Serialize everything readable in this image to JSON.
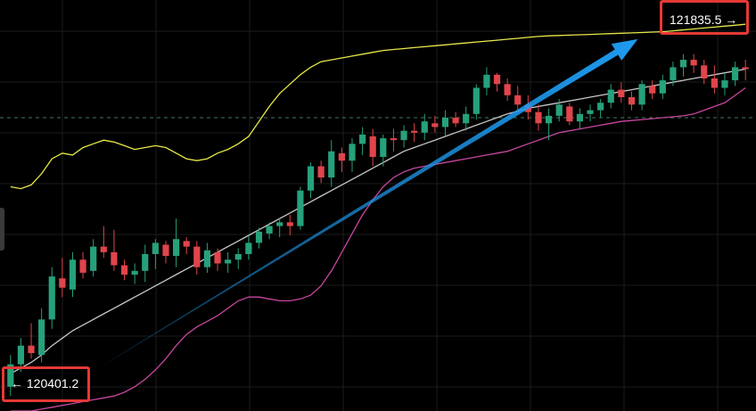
{
  "chart_data": {
    "type": "candlestick",
    "x_count": 72,
    "price_range": [
      119950,
      122150
    ],
    "grid": true,
    "colors": {
      "background": "#000000",
      "up": "#26a17b",
      "down": "#e0454b",
      "upper_band": "#e8e84a",
      "middle_band": "#c8c8c8",
      "lower_band": "#c7479e",
      "arrow": "#1e9bf0",
      "highlight_box": "#e53935",
      "reference_line": "#3f7a5a"
    },
    "reference_price": 121520,
    "candles": [
      [
        120080,
        120250,
        120030,
        120200
      ],
      [
        120200,
        120340,
        120160,
        120300
      ],
      [
        120300,
        120420,
        120230,
        120260
      ],
      [
        120250,
        120500,
        120210,
        120440
      ],
      [
        120440,
        120720,
        120390,
        120670
      ],
      [
        120660,
        120770,
        120560,
        120610
      ],
      [
        120600,
        120800,
        120560,
        120760
      ],
      [
        120760,
        120800,
        120660,
        120690
      ],
      [
        120700,
        120870,
        120670,
        120830
      ],
      [
        120830,
        120940,
        120770,
        120800
      ],
      [
        120800,
        120920,
        120700,
        120730
      ],
      [
        120730,
        120760,
        120650,
        120680
      ],
      [
        120680,
        120740,
        120630,
        120700
      ],
      [
        120700,
        120840,
        120640,
        120790
      ],
      [
        120790,
        120870,
        120710,
        120850
      ],
      [
        120840,
        120860,
        120740,
        120780
      ],
      [
        120780,
        120980,
        120720,
        120870
      ],
      [
        120860,
        120880,
        120790,
        120830
      ],
      [
        120830,
        120860,
        120680,
        120720
      ],
      [
        120720,
        120850,
        120690,
        120810
      ],
      [
        120800,
        120820,
        120700,
        120740
      ],
      [
        120740,
        120800,
        120690,
        120760
      ],
      [
        120760,
        120820,
        120710,
        120790
      ],
      [
        120790,
        120890,
        120760,
        120850
      ],
      [
        120850,
        120930,
        120820,
        120910
      ],
      [
        120900,
        120960,
        120870,
        120940
      ],
      [
        120940,
        120980,
        120880,
        120960
      ],
      [
        120960,
        121000,
        120890,
        120940
      ],
      [
        120940,
        121150,
        120920,
        121130
      ],
      [
        121130,
        121280,
        121090,
        121260
      ],
      [
        121260,
        121290,
        121170,
        121200
      ],
      [
        121200,
        121400,
        121150,
        121340
      ],
      [
        121330,
        121360,
        121230,
        121290
      ],
      [
        121290,
        121410,
        121230,
        121380
      ],
      [
        121380,
        121470,
        121320,
        121430
      ],
      [
        121420,
        121460,
        121260,
        121310
      ],
      [
        121310,
        121430,
        121260,
        121410
      ],
      [
        121410,
        121460,
        121340,
        121400
      ],
      [
        121400,
        121480,
        121360,
        121450
      ],
      [
        121450,
        121490,
        121390,
        121440
      ],
      [
        121440,
        121540,
        121400,
        121500
      ],
      [
        121490,
        121530,
        121440,
        121470
      ],
      [
        121470,
        121560,
        121420,
        121520
      ],
      [
        121520,
        121550,
        121470,
        121490
      ],
      [
        121490,
        121580,
        121450,
        121540
      ],
      [
        121540,
        121700,
        121510,
        121680
      ],
      [
        121680,
        121790,
        121640,
        121750
      ],
      [
        121750,
        121760,
        121660,
        121700
      ],
      [
        121700,
        121730,
        121610,
        121640
      ],
      [
        121640,
        121690,
        121560,
        121590
      ],
      [
        121590,
        121640,
        121510,
        121550
      ],
      [
        121550,
        121590,
        121450,
        121490
      ],
      [
        121490,
        121570,
        121400,
        121530
      ],
      [
        121530,
        121620,
        121500,
        121590
      ],
      [
        121580,
        121600,
        121480,
        121500
      ],
      [
        121500,
        121570,
        121460,
        121540
      ],
      [
        121540,
        121590,
        121500,
        121560
      ],
      [
        121560,
        121620,
        121520,
        121600
      ],
      [
        121600,
        121700,
        121570,
        121670
      ],
      [
        121670,
        121710,
        121600,
        121630
      ],
      [
        121630,
        121660,
        121560,
        121590
      ],
      [
        121590,
        121720,
        121560,
        121700
      ],
      [
        121690,
        121720,
        121620,
        121650
      ],
      [
        121650,
        121750,
        121620,
        121720
      ],
      [
        121720,
        121820,
        121690,
        121790
      ],
      [
        121790,
        121860,
        121740,
        121830
      ],
      [
        121830,
        121860,
        121760,
        121800
      ],
      [
        121800,
        121830,
        121700,
        121730
      ],
      [
        121730,
        121800,
        121650,
        121680
      ],
      [
        121680,
        121760,
        121640,
        121720
      ],
      [
        121720,
        121820,
        121690,
        121790
      ],
      [
        121790,
        121830,
        121720,
        121780
      ]
    ],
    "bands": {
      "upper": [
        121150,
        121140,
        121160,
        121220,
        121300,
        121330,
        121320,
        121360,
        121380,
        121400,
        121390,
        121370,
        121350,
        121360,
        121370,
        121360,
        121330,
        121300,
        121290,
        121300,
        121330,
        121350,
        121380,
        121420,
        121500,
        121580,
        121650,
        121700,
        121750,
        121790,
        121820,
        121830,
        121840,
        121850,
        121860,
        121870,
        121880,
        121885,
        121890,
        121895,
        121900,
        121905,
        121910,
        121915,
        121920,
        121925,
        121930,
        121935,
        121940,
        121945,
        121950,
        121955,
        121958,
        121960,
        121962,
        121964,
        121966,
        121968,
        121970,
        121972,
        121974,
        121976,
        121978,
        121980,
        121985,
        121990,
        121995,
        122000,
        122005,
        122010,
        122015,
        122020
      ],
      "middle": [
        120150,
        120180,
        120210,
        120250,
        120300,
        120340,
        120380,
        120410,
        120440,
        120470,
        120500,
        120530,
        120560,
        120590,
        120620,
        120650,
        120680,
        120710,
        120740,
        120770,
        120800,
        120830,
        120860,
        120890,
        120920,
        120950,
        120980,
        121010,
        121040,
        121070,
        121100,
        121130,
        121160,
        121190,
        121220,
        121250,
        121280,
        121310,
        121340,
        121360,
        121380,
        121400,
        121420,
        121440,
        121460,
        121480,
        121500,
        121520,
        121540,
        121555,
        121570,
        121580,
        121590,
        121600,
        121610,
        121620,
        121630,
        121640,
        121650,
        121660,
        121670,
        121680,
        121690,
        121700,
        121710,
        121720,
        121730,
        121740,
        121750,
        121760,
        121770,
        121780
      ],
      "lower": [
        119950,
        119950,
        119950,
        119960,
        119970,
        119980,
        119990,
        120000,
        120010,
        120020,
        120030,
        120050,
        120080,
        120120,
        120170,
        120230,
        120300,
        120360,
        120400,
        120430,
        120460,
        120500,
        120540,
        120560,
        120560,
        120550,
        120540,
        120540,
        120550,
        120570,
        120620,
        120700,
        120800,
        120900,
        121000,
        121080,
        121150,
        121200,
        121230,
        121250,
        121260,
        121270,
        121280,
        121290,
        121300,
        121310,
        121320,
        121330,
        121340,
        121360,
        121380,
        121400,
        121420,
        121440,
        121450,
        121460,
        121470,
        121480,
        121490,
        121500,
        121505,
        121510,
        121515,
        121520,
        121525,
        121530,
        121540,
        121560,
        121580,
        121600,
        121640,
        121680
      ]
    },
    "annotations": {
      "high_label": "121835.5",
      "low_label": "120401.2",
      "high_arrow": "→",
      "low_arrow": "←"
    }
  }
}
